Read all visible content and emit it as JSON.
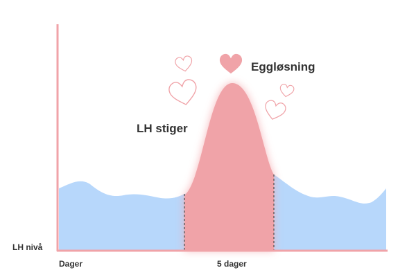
{
  "labels": {
    "ovulation": "Eggløsning",
    "rise": "LH stiger",
    "y_axis": "LH nivå",
    "x_axis": "Dager",
    "window": "5 dager"
  }
}
